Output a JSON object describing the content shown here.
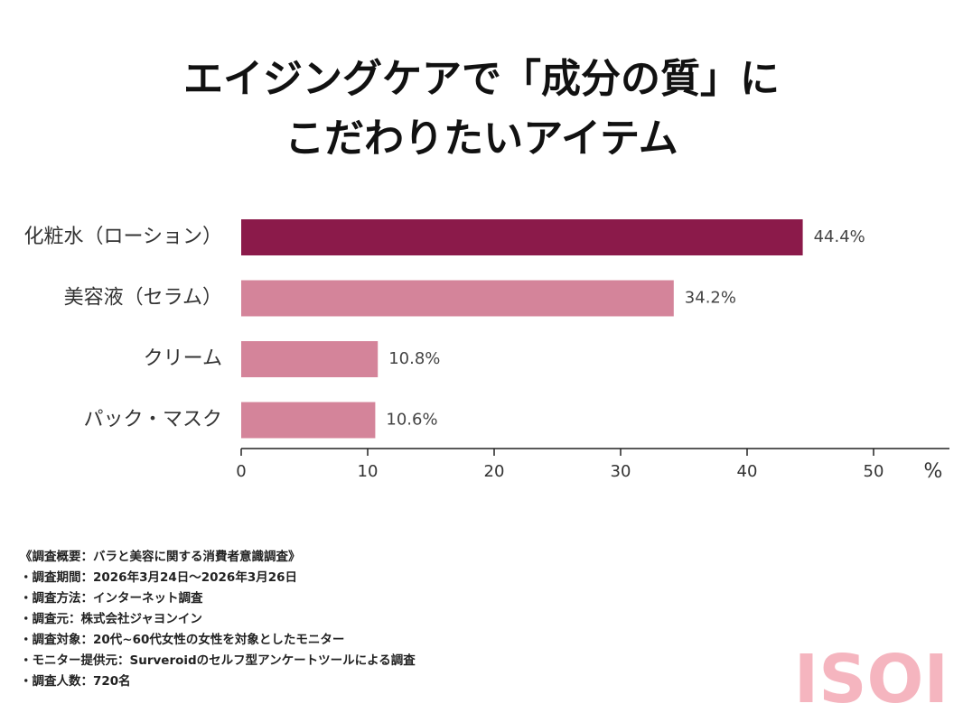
{
  "chart_data": {
    "type": "barh",
    "title": [
      "エイジングケアで「成分の質」に",
      "こだわりたいアイテム"
    ],
    "categories": [
      "化粧水（ローション）",
      "美容液（セラム）",
      "クリーム",
      "パック・マスク"
    ],
    "values": [
      44.4,
      34.2,
      10.8,
      10.6
    ],
    "value_labels": [
      "44.4%",
      "34.2%",
      "10.8%",
      "10.6%"
    ],
    "colors": [
      "#8b1a4a",
      "#d4849a",
      "#d4849a",
      "#d4849a"
    ],
    "xlim": [
      0,
      56
    ],
    "xticks": [
      0,
      10,
      20,
      30,
      40,
      50
    ],
    "xlabel": "%"
  },
  "notes": [
    "《調査概要：バラと美容に関する消費者意識調査》",
    "・調査期間：2026年3月24日～2026年3月26日",
    "・調査方法：インターネット調査",
    "・調査元：株式会社ジャヨンイン",
    "・調査対象：20代~60代女性の女性を対象としたモニター",
    "・モニター提供元：Surveroidのセルフ型アンケートツールによる調査",
    "・調査人数：720名"
  ],
  "logo": "ISOI"
}
